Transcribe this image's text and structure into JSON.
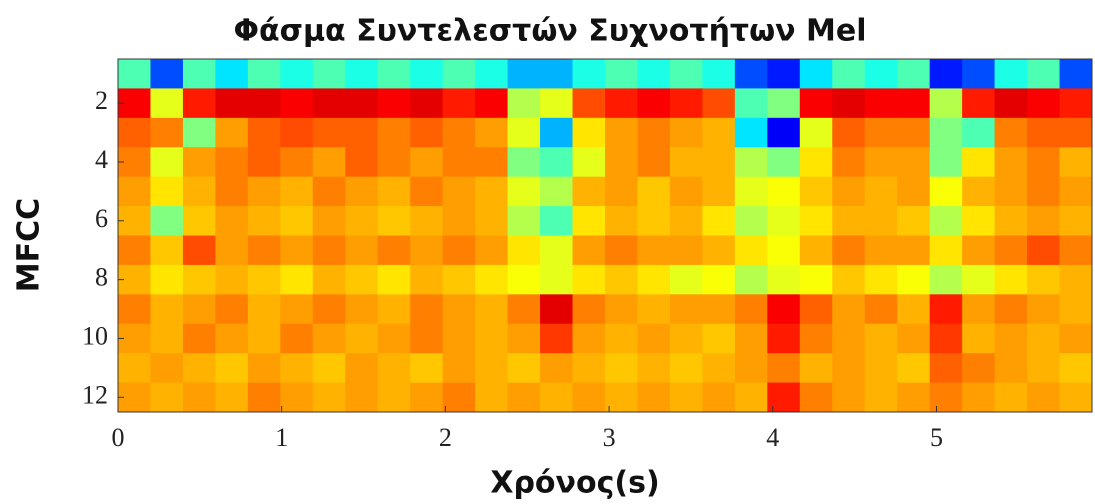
{
  "chart_data": {
    "type": "heatmap",
    "title": "Φάσμα Συντελεστών Συχνοτήτων Mel",
    "x_label": "Χρόνος(s)",
    "y_label": "MFCC",
    "colormap": "jet",
    "xlim": [
      0,
      5.95
    ],
    "xticks": [
      0,
      1,
      2,
      3,
      4,
      5
    ],
    "ylim": [
      12.5,
      0.5
    ],
    "yticks": [
      2,
      4,
      6,
      8,
      10,
      12
    ],
    "y": [
      1,
      2,
      3,
      4,
      5,
      6,
      7,
      8,
      9,
      10,
      11,
      12
    ],
    "values": [
      [
        0.45,
        0.2,
        0.45,
        0.35,
        0.45,
        0.4,
        0.45,
        0.4,
        0.45,
        0.4,
        0.45,
        0.4,
        0.3,
        0.3,
        0.4,
        0.45,
        0.4,
        0.45,
        0.4,
        0.2,
        0.15,
        0.35,
        0.45,
        0.4,
        0.45,
        0.15,
        0.2,
        0.4,
        0.45,
        0.2
      ],
      [
        0.88,
        0.6,
        0.85,
        0.9,
        0.9,
        0.88,
        0.9,
        0.9,
        0.88,
        0.9,
        0.85,
        0.88,
        0.55,
        0.6,
        0.8,
        0.85,
        0.88,
        0.85,
        0.8,
        0.45,
        0.5,
        0.88,
        0.9,
        0.88,
        0.88,
        0.55,
        0.85,
        0.9,
        0.88,
        0.85
      ],
      [
        0.78,
        0.75,
        0.5,
        0.72,
        0.78,
        0.8,
        0.78,
        0.78,
        0.75,
        0.78,
        0.75,
        0.72,
        0.6,
        0.3,
        0.65,
        0.72,
        0.75,
        0.72,
        0.7,
        0.35,
        0.12,
        0.6,
        0.78,
        0.75,
        0.75,
        0.5,
        0.45,
        0.75,
        0.78,
        0.78
      ],
      [
        0.75,
        0.6,
        0.72,
        0.75,
        0.78,
        0.75,
        0.72,
        0.78,
        0.75,
        0.72,
        0.75,
        0.75,
        0.5,
        0.45,
        0.6,
        0.72,
        0.75,
        0.7,
        0.7,
        0.55,
        0.5,
        0.65,
        0.75,
        0.72,
        0.72,
        0.5,
        0.65,
        0.72,
        0.75,
        0.7
      ],
      [
        0.72,
        0.65,
        0.7,
        0.75,
        0.72,
        0.7,
        0.75,
        0.72,
        0.7,
        0.75,
        0.72,
        0.7,
        0.6,
        0.55,
        0.7,
        0.72,
        0.68,
        0.72,
        0.7,
        0.6,
        0.62,
        0.68,
        0.72,
        0.7,
        0.72,
        0.62,
        0.7,
        0.72,
        0.75,
        0.72
      ],
      [
        0.7,
        0.5,
        0.68,
        0.72,
        0.7,
        0.68,
        0.72,
        0.7,
        0.68,
        0.7,
        0.72,
        0.7,
        0.55,
        0.45,
        0.65,
        0.7,
        0.68,
        0.7,
        0.65,
        0.55,
        0.6,
        0.65,
        0.7,
        0.7,
        0.68,
        0.55,
        0.65,
        0.7,
        0.72,
        0.7
      ],
      [
        0.75,
        0.68,
        0.8,
        0.72,
        0.75,
        0.72,
        0.75,
        0.72,
        0.75,
        0.72,
        0.75,
        0.72,
        0.65,
        0.6,
        0.72,
        0.75,
        0.72,
        0.72,
        0.7,
        0.65,
        0.62,
        0.7,
        0.75,
        0.72,
        0.72,
        0.65,
        0.72,
        0.75,
        0.8,
        0.75
      ],
      [
        0.7,
        0.65,
        0.68,
        0.7,
        0.68,
        0.65,
        0.7,
        0.68,
        0.65,
        0.7,
        0.68,
        0.65,
        0.62,
        0.6,
        0.65,
        0.68,
        0.65,
        0.6,
        0.62,
        0.55,
        0.6,
        0.62,
        0.68,
        0.65,
        0.62,
        0.55,
        0.6,
        0.65,
        0.68,
        0.7
      ],
      [
        0.75,
        0.7,
        0.72,
        0.75,
        0.7,
        0.72,
        0.75,
        0.72,
        0.7,
        0.75,
        0.72,
        0.7,
        0.75,
        0.9,
        0.75,
        0.72,
        0.7,
        0.72,
        0.72,
        0.75,
        0.88,
        0.78,
        0.72,
        0.75,
        0.7,
        0.85,
        0.72,
        0.75,
        0.72,
        0.7
      ],
      [
        0.72,
        0.7,
        0.75,
        0.72,
        0.7,
        0.75,
        0.72,
        0.7,
        0.72,
        0.75,
        0.72,
        0.7,
        0.72,
        0.82,
        0.72,
        0.7,
        0.72,
        0.7,
        0.68,
        0.72,
        0.85,
        0.75,
        0.72,
        0.7,
        0.72,
        0.82,
        0.7,
        0.72,
        0.7,
        0.72
      ],
      [
        0.7,
        0.72,
        0.7,
        0.68,
        0.72,
        0.7,
        0.68,
        0.72,
        0.7,
        0.68,
        0.72,
        0.7,
        0.68,
        0.72,
        0.7,
        0.68,
        0.7,
        0.68,
        0.7,
        0.72,
        0.75,
        0.7,
        0.72,
        0.7,
        0.68,
        0.78,
        0.75,
        0.72,
        0.7,
        0.68
      ],
      [
        0.72,
        0.7,
        0.72,
        0.7,
        0.75,
        0.72,
        0.7,
        0.72,
        0.7,
        0.72,
        0.75,
        0.7,
        0.72,
        0.7,
        0.72,
        0.7,
        0.72,
        0.7,
        0.72,
        0.7,
        0.85,
        0.75,
        0.72,
        0.7,
        0.72,
        0.75,
        0.72,
        0.7,
        0.72,
        0.7
      ]
    ]
  }
}
